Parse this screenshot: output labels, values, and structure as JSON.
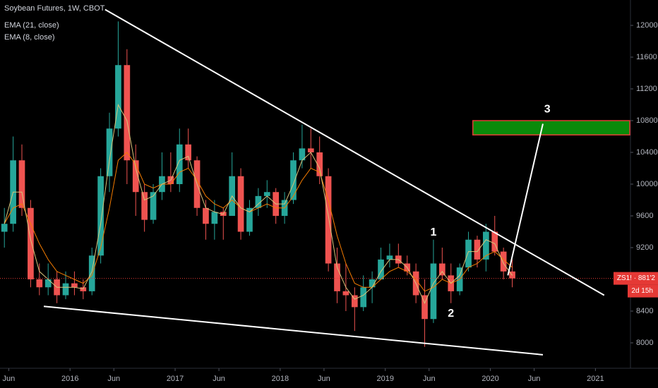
{
  "chart_data": {
    "type": "candlestick",
    "title": "Soybean Futures, 1W, CBOT",
    "x": [
      "2015-05",
      "2015-06",
      "2015-07",
      "2015-08",
      "2015-09",
      "2015-10",
      "2015-11",
      "2015-12",
      "2016-01",
      "2016-02",
      "2016-03",
      "2016-04",
      "2016-05",
      "2016-06",
      "2016-07",
      "2016-08",
      "2016-09",
      "2016-10",
      "2016-11",
      "2016-12",
      "2017-01",
      "2017-02",
      "2017-03",
      "2017-04",
      "2017-05",
      "2017-06",
      "2017-07",
      "2017-08",
      "2017-09",
      "2017-10",
      "2017-11",
      "2017-12",
      "2018-01",
      "2018-02",
      "2018-03",
      "2018-04",
      "2018-05",
      "2018-06",
      "2018-07",
      "2018-08",
      "2018-09",
      "2018-10",
      "2018-11",
      "2018-12",
      "2019-01",
      "2019-02",
      "2019-03",
      "2019-04",
      "2019-05",
      "2019-06",
      "2019-07",
      "2019-08",
      "2019-09",
      "2019-10",
      "2019-11",
      "2019-12",
      "2020-01",
      "2020-02",
      "2020-03"
    ],
    "open": [
      9400,
      9500,
      10300,
      9700,
      8800,
      8700,
      8800,
      8600,
      8750,
      8700,
      8650,
      9100,
      10100,
      10700,
      11500,
      10300,
      9900,
      9550,
      9900,
      10100,
      10000,
      10500,
      10300,
      9700,
      9500,
      9650,
      9600,
      10100,
      9400,
      9700,
      9850,
      9900,
      9600,
      9800,
      10300,
      10450,
      10400,
      10100,
      9000,
      8650,
      8600,
      8450,
      8700,
      8800,
      9050,
      9100,
      9000,
      8900,
      8600,
      8300,
      9000,
      8850,
      8650,
      8950,
      9300,
      9050,
      9400,
      9150,
      8900
    ],
    "high": [
      9700,
      10600,
      10500,
      9800,
      9000,
      9000,
      8900,
      8900,
      8900,
      8800,
      9200,
      10200,
      10900,
      12050,
      11700,
      10500,
      10000,
      10000,
      10400,
      10400,
      10700,
      10700,
      10350,
      9800,
      9800,
      9700,
      10400,
      10200,
      9800,
      9950,
      10050,
      9950,
      9900,
      10400,
      10750,
      10700,
      10600,
      10200,
      9200,
      9000,
      8700,
      8850,
      8900,
      9200,
      9250,
      9250,
      9100,
      9000,
      8800,
      9300,
      9200,
      9000,
      9000,
      9400,
      9350,
      9500,
      9600,
      9200,
      9050
    ],
    "low": [
      9200,
      9400,
      9600,
      8700,
      8600,
      8600,
      8500,
      8550,
      8600,
      8550,
      8600,
      9000,
      9900,
      10600,
      10000,
      9600,
      9400,
      9500,
      9800,
      9900,
      9900,
      10200,
      9600,
      9300,
      9300,
      9300,
      9600,
      9300,
      9350,
      9600,
      9700,
      9500,
      9500,
      9750,
      10200,
      10200,
      10000,
      8900,
      8500,
      8400,
      8150,
      8400,
      8500,
      8800,
      8950,
      8950,
      8850,
      8500,
      7950,
      8250,
      8800,
      8500,
      8600,
      8900,
      8950,
      8900,
      9100,
      8800,
      8700
    ],
    "close": [
      9500,
      10300,
      9700,
      8800,
      8700,
      8800,
      8600,
      8750,
      8700,
      8650,
      9100,
      10100,
      10700,
      11500,
      10300,
      9900,
      9550,
      9900,
      10100,
      10000,
      10500,
      10300,
      9700,
      9500,
      9650,
      9600,
      10100,
      9400,
      9700,
      9850,
      9900,
      9600,
      9800,
      10300,
      10450,
      10400,
      10100,
      9000,
      8650,
      8600,
      8450,
      8700,
      8800,
      9050,
      9100,
      9000,
      8900,
      8600,
      8300,
      9000,
      8850,
      8650,
      8950,
      9300,
      9050,
      9400,
      9150,
      8900,
      8812.5
    ],
    "up_color": "#26a69a",
    "down_color": "#ef5350",
    "series": [
      {
        "name": "EMA (21, close)",
        "color": "#f57c00",
        "values": [
          9500,
          9700,
          9750,
          9500,
          9250,
          9050,
          8900,
          8850,
          8800,
          8750,
          8850,
          9200,
          9700,
          10300,
          10400,
          10250,
          10000,
          9950,
          10000,
          10000,
          10150,
          10200,
          10050,
          9850,
          9750,
          9700,
          9800,
          9700,
          9650,
          9700,
          9750,
          9700,
          9700,
          9850,
          10050,
          10200,
          10150,
          9800,
          9350,
          9000,
          8750,
          8700,
          8700,
          8800,
          8900,
          8950,
          8900,
          8800,
          8650,
          8700,
          8800,
          8750,
          8800,
          8950,
          9000,
          9100,
          9150,
          9050,
          8950
        ]
      },
      {
        "name": "EMA (8, close)",
        "color": "#d8c47a",
        "values": [
          9500,
          9900,
          9900,
          9300,
          8900,
          8800,
          8700,
          8700,
          8700,
          8680,
          8900,
          9500,
          10300,
          11000,
          10800,
          10200,
          9800,
          9850,
          10000,
          10050,
          10300,
          10350,
          10000,
          9700,
          9650,
          9620,
          9850,
          9700,
          9650,
          9750,
          9850,
          9750,
          9750,
          10000,
          10300,
          10400,
          10200,
          9600,
          8950,
          8700,
          8550,
          8600,
          8700,
          8900,
          9050,
          9050,
          8950,
          8750,
          8500,
          8750,
          8900,
          8750,
          8850,
          9150,
          9150,
          9300,
          9250,
          9000,
          8850
        ]
      }
    ],
    "xlim": [
      "2015-05",
      "2021-05"
    ],
    "xticks": [
      {
        "value": "2015-06",
        "label": "Jun"
      },
      {
        "value": "2016-01",
        "label": "2016"
      },
      {
        "value": "2016-06",
        "label": "Jun"
      },
      {
        "value": "2017-01",
        "label": "2017"
      },
      {
        "value": "2017-06",
        "label": "Jun"
      },
      {
        "value": "2018-01",
        "label": "2018"
      },
      {
        "value": "2018-06",
        "label": "Jun"
      },
      {
        "value": "2019-01",
        "label": "2019"
      },
      {
        "value": "2019-06",
        "label": "Jun"
      },
      {
        "value": "2020-01",
        "label": "2020"
      },
      {
        "value": "2020-06",
        "label": "Jun"
      },
      {
        "value": "2021-01",
        "label": "2021"
      }
    ],
    "ylim": [
      7680,
      12320
    ],
    "yticks": [
      8000,
      8400,
      9200,
      9600,
      10000,
      10400,
      10800,
      11200,
      11600,
      12000
    ],
    "grid": false,
    "lines": [
      {
        "x": [
          "2016-05",
          "2021-02"
        ],
        "y": [
          12200,
          8600
        ],
        "color": "#ffffff"
      },
      {
        "x": [
          "2015-10",
          "2020-07"
        ],
        "y": [
          8460,
          7850
        ],
        "color": "#ffffff"
      },
      {
        "x": [
          "2020-03",
          "2020-07"
        ],
        "y": [
          8850,
          10760
        ],
        "color": "#ffffff"
      }
    ],
    "zones": [
      {
        "x": [
          "2019-11",
          "2021-05"
        ],
        "y": [
          10620,
          10800
        ],
        "color": "#0a8a0a",
        "border": "#e53935"
      }
    ],
    "annotations": [
      {
        "text": "1",
        "x": "2019-06",
        "y": 9390
      },
      {
        "text": "2",
        "x": "2019-08",
        "y": 8365
      },
      {
        "text": "3",
        "x": "2020-07",
        "y": 10940
      }
    ],
    "price": 8812.5,
    "price_label": "ZS1! · 881'2",
    "countdown": "2d 15h",
    "price_color": "#e53935"
  }
}
